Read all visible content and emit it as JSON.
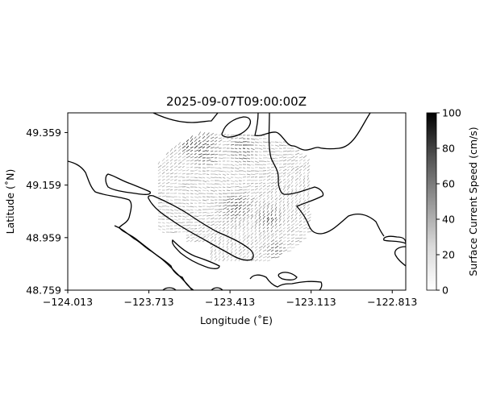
{
  "title": "2025-09-07T09:00:00Z",
  "xlabel": "Longitude (˚E)",
  "ylabel": "Latitude (˚N)",
  "x_ticks": [
    "−124.013",
    "−123.713",
    "−123.413",
    "−123.113",
    "−122.813"
  ],
  "y_ticks": [
    "48.759",
    "48.959",
    "49.159",
    "49.359"
  ],
  "colorbar": {
    "label": "Surface Current Speed (cm/s)",
    "ticks": [
      "0",
      "20",
      "40",
      "60",
      "80",
      "100"
    ],
    "range": [
      0,
      100
    ],
    "colormap": "greys"
  },
  "chart_data": {
    "type": "map",
    "xlim": [
      -124.013,
      -122.763
    ],
    "ylim": [
      48.759,
      49.434
    ],
    "x_tick_values": [
      -124.013,
      -123.713,
      -123.413,
      -123.113,
      -122.813
    ],
    "y_tick_values": [
      48.759,
      48.959,
      49.159,
      49.359
    ],
    "field": "Surface Current Speed (cm/s)",
    "vmin": 0,
    "vmax": 100
  }
}
